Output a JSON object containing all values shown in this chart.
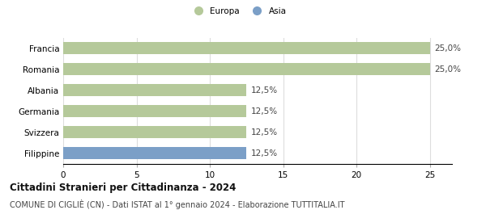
{
  "categories": [
    "Francia",
    "Romania",
    "Albania",
    "Germania",
    "Svizzera",
    "Filippine"
  ],
  "values": [
    25.0,
    25.0,
    12.5,
    12.5,
    12.5,
    12.5
  ],
  "bar_colors": [
    "#b5c99a",
    "#b5c99a",
    "#b5c99a",
    "#b5c99a",
    "#b5c99a",
    "#7b9fc7"
  ],
  "value_labels": [
    "25,0%",
    "25,0%",
    "12,5%",
    "12,5%",
    "12,5%",
    "12,5%"
  ],
  "legend_entries": [
    {
      "label": "Europa",
      "color": "#b5c99a"
    },
    {
      "label": "Asia",
      "color": "#7b9fc7"
    }
  ],
  "xlim": [
    0,
    26.5
  ],
  "xticks": [
    0,
    5,
    10,
    15,
    20,
    25
  ],
  "title": "Cittadini Stranieri per Cittadinanza - 2024",
  "subtitle": "COMUNE DI CIGLIÈ (CN) - Dati ISTAT al 1° gennaio 2024 - Elaborazione TUTTITALIA.IT",
  "title_fontsize": 8.5,
  "subtitle_fontsize": 7.0,
  "bar_height": 0.58,
  "background_color": "#ffffff",
  "grid_color": "#dddddd",
  "label_fontsize": 7.5,
  "tick_fontsize": 7.5
}
